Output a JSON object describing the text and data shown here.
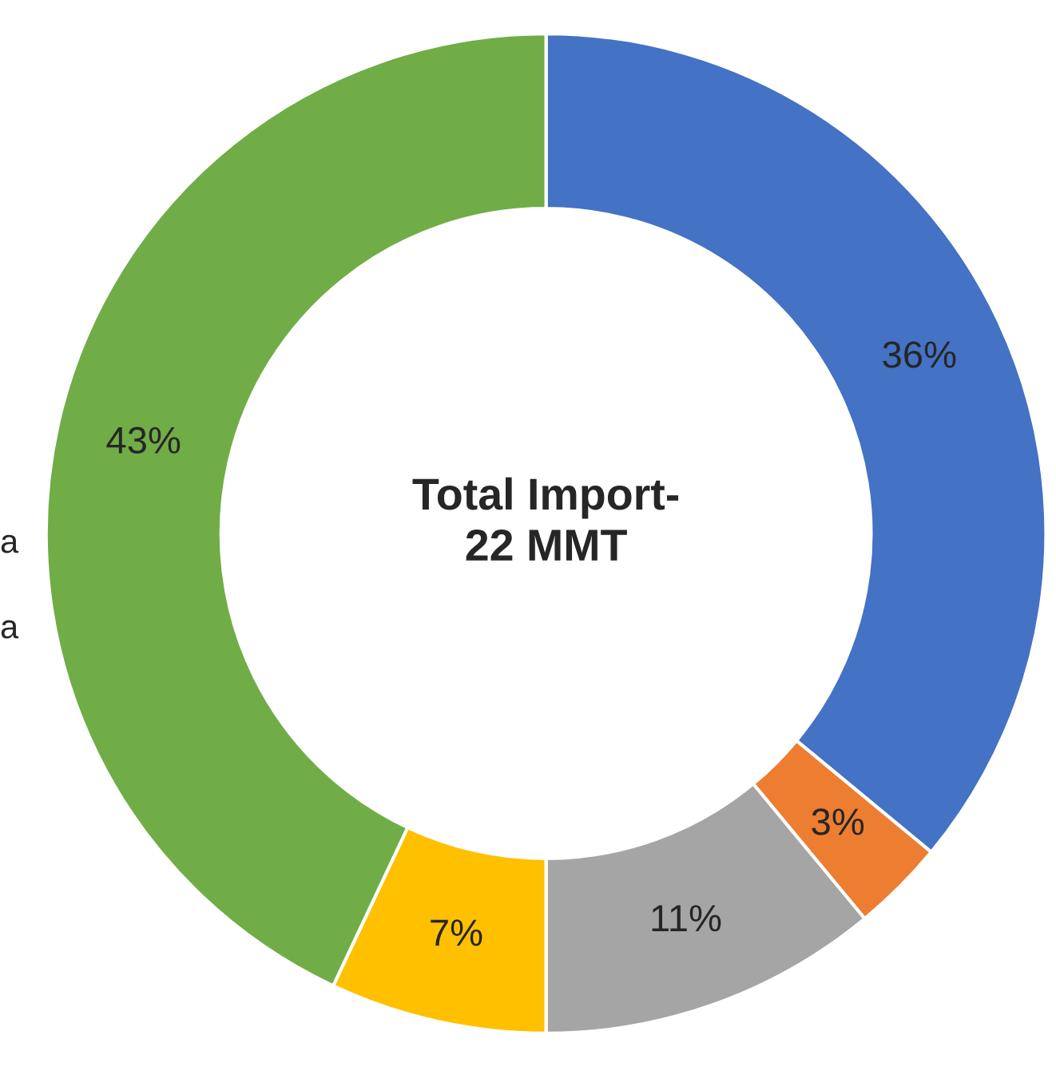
{
  "chart_data": {
    "type": "donut",
    "title": "Total Import-\n22 MMT",
    "categories": [
      null,
      null,
      null,
      null,
      null
    ],
    "values": [
      36,
      3,
      11,
      7,
      43
    ],
    "value_labels": [
      "36%",
      "3%",
      "11%",
      "7%",
      "43%"
    ],
    "colors": [
      "#4472c4",
      "#ed7d31",
      "#a5a5a5",
      "#ffc000",
      "#70ad47"
    ],
    "annotations": [
      "a",
      "a"
    ],
    "legend": false
  }
}
